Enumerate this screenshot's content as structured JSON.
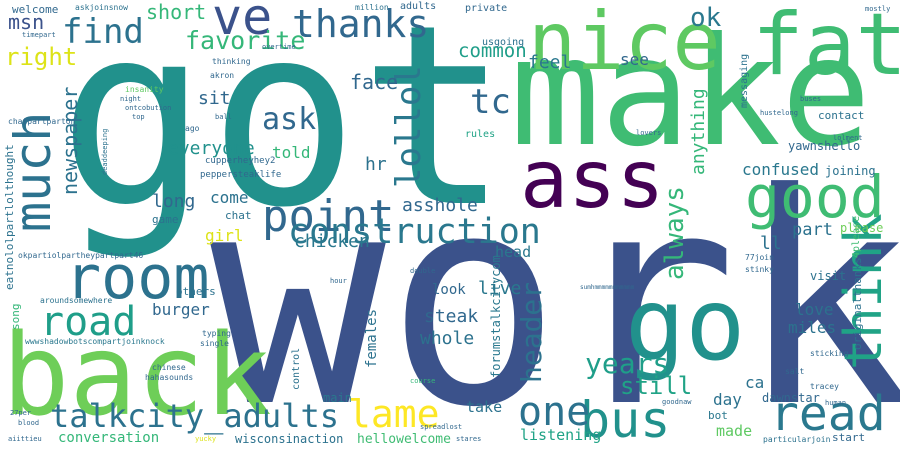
{
  "words": [
    {
      "text": "got",
      "color": "#21918c"
    },
    {
      "text": "work",
      "color": "#3b528b"
    },
    {
      "text": "make",
      "color": "#3fbc73"
    },
    {
      "text": "back",
      "color": "#6ece58"
    },
    {
      "text": "nice",
      "color": "#5ec962"
    },
    {
      "text": "fat",
      "color": "#3fbc73"
    },
    {
      "text": "go",
      "color": "#21918c"
    },
    {
      "text": "ass",
      "color": "#440154"
    },
    {
      "text": "good",
      "color": "#3fbc73"
    },
    {
      "text": "much",
      "color": "#2c728e"
    },
    {
      "text": "room",
      "color": "#2c728e"
    },
    {
      "text": "point",
      "color": "#31688e"
    },
    {
      "text": "ve",
      "color": "#3b528b"
    },
    {
      "text": "thanks",
      "color": "#31688e"
    },
    {
      "text": "think",
      "color": "#20a386"
    },
    {
      "text": "construction",
      "color": "#2a788e"
    },
    {
      "text": "read",
      "color": "#2a788e"
    },
    {
      "text": "bus",
      "color": "#21918c"
    },
    {
      "text": "one",
      "color": "#2c728e"
    },
    {
      "text": "road",
      "color": "#1f9e89"
    },
    {
      "text": "lame",
      "color": "#fde725"
    },
    {
      "text": "talkcity_adults",
      "color": "#2c728e"
    },
    {
      "text": "find",
      "color": "#2c728e"
    },
    {
      "text": "favorite",
      "color": "#35b779"
    },
    {
      "text": "ask",
      "color": "#31688e"
    },
    {
      "text": "lollol",
      "color": "#2a788e"
    },
    {
      "text": "tc",
      "color": "#31688e"
    },
    {
      "text": "ok",
      "color": "#2a788e"
    },
    {
      "text": "right",
      "color": "#dde318"
    },
    {
      "text": "msn",
      "color": "#3b528b"
    },
    {
      "text": "short",
      "color": "#35b779"
    },
    {
      "text": "header",
      "color": "#2c728e"
    },
    {
      "text": "always",
      "color": "#35b779"
    },
    {
      "text": "years",
      "color": "#1f9e89"
    },
    {
      "text": "still",
      "color": "#20a386"
    },
    {
      "text": "newspaper",
      "color": "#2c728e"
    },
    {
      "text": "face",
      "color": "#31688e"
    },
    {
      "text": "common",
      "color": "#1f9e89"
    },
    {
      "text": "feel",
      "color": "#2a788e"
    },
    {
      "text": "see",
      "color": "#31688e"
    },
    {
      "text": "anything",
      "color": "#35b779"
    },
    {
      "text": "everyone",
      "color": "#21918c"
    },
    {
      "text": "sit",
      "color": "#31688e"
    },
    {
      "text": "told",
      "color": "#35b779"
    },
    {
      "text": "hr",
      "color": "#2c728e"
    },
    {
      "text": "asshole",
      "color": "#31688e"
    },
    {
      "text": "chicken",
      "color": "#2a788e"
    },
    {
      "text": "long",
      "color": "#31688e"
    },
    {
      "text": "come",
      "color": "#2c728e"
    },
    {
      "text": "girl",
      "color": "#dde318"
    },
    {
      "text": "burger",
      "color": "#31688e"
    },
    {
      "text": "steak",
      "color": "#31688e"
    },
    {
      "text": "whole",
      "color": "#2c728e"
    },
    {
      "text": "live",
      "color": "#2a788e"
    },
    {
      "text": "look",
      "color": "#31688e"
    },
    {
      "text": "head",
      "color": "#2a788e"
    },
    {
      "text": "part",
      "color": "#2c728e"
    },
    {
      "text": "confused",
      "color": "#2a788e"
    },
    {
      "text": "love",
      "color": "#2c728e"
    },
    {
      "text": "miles",
      "color": "#2c728e"
    },
    {
      "text": "ca",
      "color": "#2c728e"
    },
    {
      "text": "day",
      "color": "#2c728e"
    },
    {
      "text": "made",
      "color": "#5ec962"
    },
    {
      "text": "take",
      "color": "#2c728e"
    },
    {
      "text": "listening",
      "color": "#20a386"
    },
    {
      "text": "conversation",
      "color": "#35b779"
    },
    {
      "text": "hellowelcome",
      "color": "#3fbc73"
    },
    {
      "text": "wisconsinaction",
      "color": "#2c728e"
    },
    {
      "text": "main",
      "color": "#2a788e"
    },
    {
      "text": "dawnstar",
      "color": "#31688e"
    },
    {
      "text": "bot",
      "color": "#2a788e"
    },
    {
      "text": "start",
      "color": "#31688e"
    },
    {
      "text": "visit",
      "color": "#2c728e"
    },
    {
      "text": "ll",
      "color": "#2c728e"
    },
    {
      "text": "please",
      "color": "#6ece58"
    },
    {
      "text": "joining",
      "color": "#2c728e"
    },
    {
      "text": "contact",
      "color": "#2c728e"
    },
    {
      "text": "yawnshello",
      "color": "#31688e"
    },
    {
      "text": "females",
      "color": "#2c728e"
    },
    {
      "text": "forumstalkcitycom",
      "color": "#2a788e"
    },
    {
      "text": "originalthanks",
      "color": "#2c728e"
    },
    {
      "text": "4please",
      "color": "#3fbc73"
    },
    {
      "text": "eatnololpartlolthought",
      "color": "#2c728e"
    },
    {
      "text": "welcome",
      "color": "#31688e"
    },
    {
      "text": "others",
      "color": "#2c728e"
    },
    {
      "text": "song",
      "color": "#35b779"
    },
    {
      "text": "game",
      "color": "#2c728e"
    },
    {
      "text": "chat",
      "color": "#2c728e"
    },
    {
      "text": "private",
      "color": "#31688e"
    },
    {
      "text": "usgoing",
      "color": "#2c728e"
    },
    {
      "text": "rules",
      "color": "#20a386"
    },
    {
      "text": "adults",
      "color": "#31688e"
    },
    {
      "text": "messaging",
      "color": "#2c728e"
    },
    {
      "text": "control",
      "color": "#2c728e"
    },
    {
      "text": "cupperheyhey2",
      "color": "#31688e"
    },
    {
      "text": "peppersteaklife",
      "color": "#31688e"
    },
    {
      "text": "okpartiolpartheypartpart46",
      "color": "#31688e"
    },
    {
      "text": "wwwshadowbotscompartjoinknock",
      "color": "#2a788e"
    },
    {
      "text": "aroundsomewhere",
      "color": "#2c728e"
    },
    {
      "text": "askjoinsnow",
      "color": "#2c728e"
    },
    {
      "text": "million",
      "color": "#2c728e"
    },
    {
      "text": "chatpartparton",
      "color": "#31688e"
    },
    {
      "text": "deaddeeping",
      "color": "#2c728e"
    },
    {
      "text": "ago",
      "color": "#31688e"
    },
    {
      "text": "akron",
      "color": "#31688e"
    },
    {
      "text": "thinking",
      "color": "#31688e"
    },
    {
      "text": "spreadlost",
      "color": "#31688e"
    },
    {
      "text": "tracey",
      "color": "#31688e"
    },
    {
      "text": "particularjoin",
      "color": "#2c728e"
    },
    {
      "text": "stinky",
      "color": "#31688e"
    },
    {
      "text": "77join",
      "color": "#31688e"
    },
    {
      "text": "sticking",
      "color": "#31688e"
    },
    {
      "text": "salt",
      "color": "#31688e"
    },
    {
      "text": "double",
      "color": "#31688e"
    },
    {
      "text": "course",
      "color": "#35b779"
    },
    {
      "text": "chinese",
      "color": "#31688e"
    },
    {
      "text": "hahasounds",
      "color": "#31688e"
    },
    {
      "text": "typing",
      "color": "#31688e"
    },
    {
      "text": "single",
      "color": "#31688e"
    },
    {
      "text": "hour",
      "color": "#31688e"
    },
    {
      "text": "insanity",
      "color": "#5ec962"
    },
    {
      "text": "night",
      "color": "#31688e"
    },
    {
      "text": "ontcobution",
      "color": "#31688e"
    },
    {
      "text": "top",
      "color": "#31688e"
    },
    {
      "text": "ball",
      "color": "#31688e"
    },
    {
      "text": "timepart",
      "color": "#31688e"
    },
    {
      "text": "overtime",
      "color": "#31688e"
    },
    {
      "text": "buses",
      "color": "#31688e"
    },
    {
      "text": "lolment",
      "color": "#31688e"
    },
    {
      "text": "hustelong",
      "color": "#31688e"
    },
    {
      "text": "lovers",
      "color": "#31688e"
    },
    {
      "text": "mostly",
      "color": "#31688e"
    },
    {
      "text": "yucky",
      "color": "#dde318"
    },
    {
      "text": "stares",
      "color": "#31688e"
    },
    {
      "text": "goodnaw",
      "color": "#31688e"
    },
    {
      "text": "human",
      "color": "#31688e"
    },
    {
      "text": "blood",
      "color": "#31688e"
    },
    {
      "text": "27per",
      "color": "#31688e"
    },
    {
      "text": "aiittieu",
      "color": "#31688e"
    },
    {
      "text": "sumhmmmmmmmmmmm",
      "color": "#31688e"
    }
  ]
}
